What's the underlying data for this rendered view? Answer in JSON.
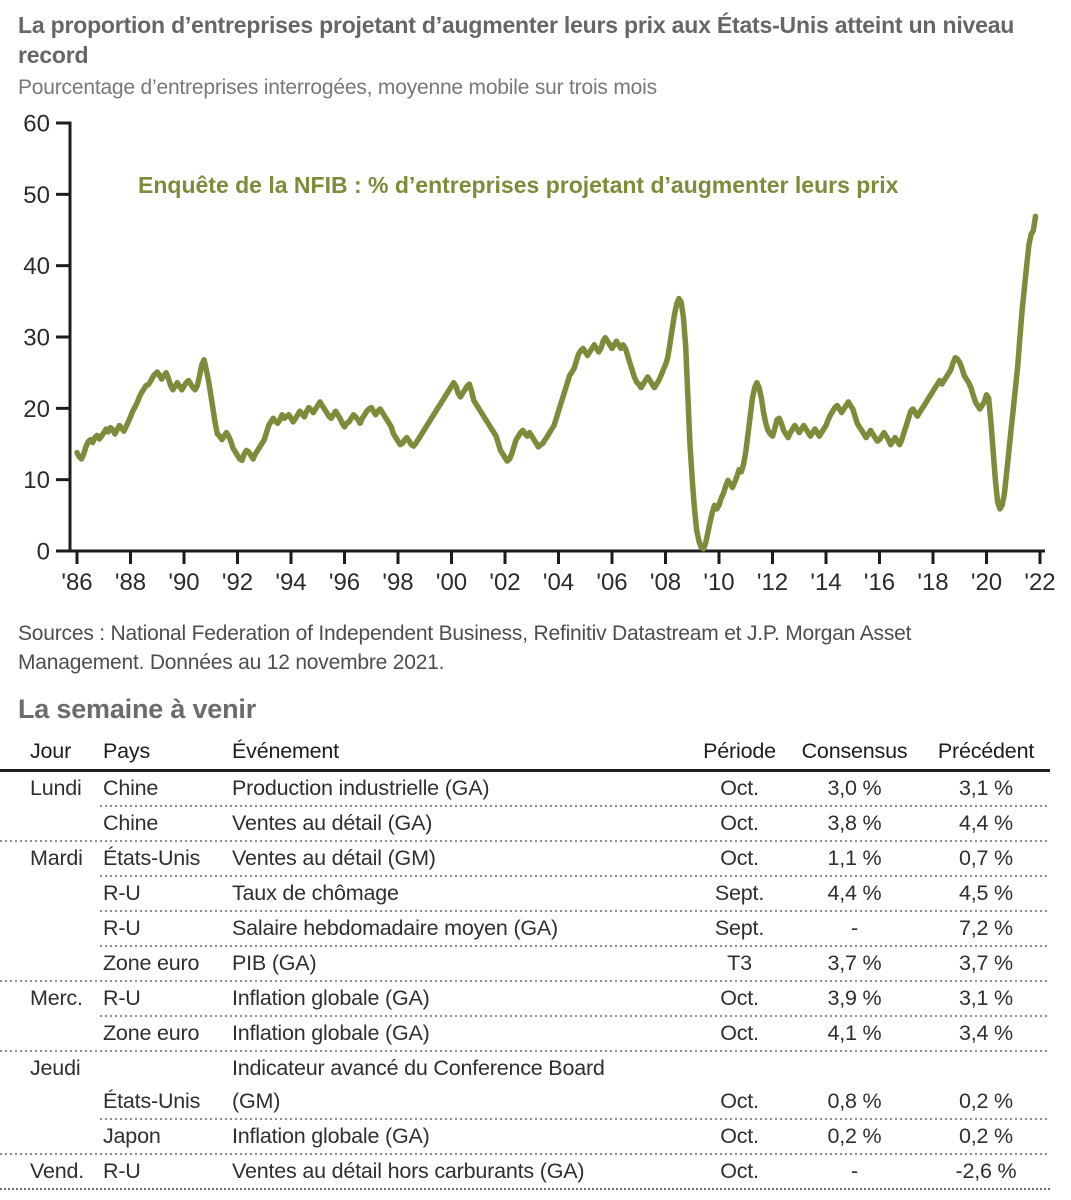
{
  "header": {
    "title": "La proportion d’entreprises projetant d’augmenter leurs prix aux États-Unis atteint un niveau record",
    "subtitle": "Pourcentage d’entreprises interrogées, moyenne mobile sur trois mois"
  },
  "chart_data": {
    "type": "line",
    "legend_label": "Enquête de la NFIB : % d’entreprises projetant d’augmenter leurs prix",
    "line_color": "#7d8b3a",
    "axis_color": "#1c1c1c",
    "ylim": [
      0,
      60
    ],
    "yticks": [
      0,
      10,
      20,
      30,
      40,
      50,
      60
    ],
    "xtick_labels": [
      "'86",
      "'88",
      "'90",
      "'92",
      "'94",
      "'96",
      "'98",
      "'00",
      "'02",
      "'04",
      "'06",
      "'08",
      "'10",
      "'12",
      "'14",
      "'16",
      "'18",
      "'20",
      "'22"
    ],
    "xtick_years": [
      1986,
      1988,
      1990,
      1992,
      1994,
      1996,
      1998,
      2000,
      2002,
      2004,
      2006,
      2008,
      2010,
      2012,
      2014,
      2016,
      2018,
      2020,
      2022
    ],
    "x_start_year": 1986,
    "points_per_year": 12,
    "grid": false,
    "values": [
      13.8,
      13.2,
      12.9,
      13.6,
      14.6,
      15.3,
      15.6,
      15.2,
      15.9,
      16.2,
      15.7,
      16.1,
      16.6,
      17.1,
      16.7,
      17.3,
      17.0,
      16.4,
      17.0,
      17.6,
      17.2,
      16.8,
      17.4,
      18.1,
      18.8,
      19.6,
      20.2,
      20.8,
      21.6,
      22.2,
      22.7,
      23.2,
      23.3,
      23.8,
      24.4,
      24.8,
      25.1,
      24.6,
      24.1,
      24.6,
      25.0,
      24.2,
      23.2,
      22.6,
      23.1,
      23.6,
      23.1,
      22.6,
      23.1,
      23.6,
      23.9,
      23.4,
      22.9,
      22.6,
      23.2,
      24.6,
      26.1,
      26.8,
      25.4,
      23.9,
      21.9,
      19.9,
      17.9,
      16.4,
      16.1,
      15.6,
      16.1,
      16.6,
      16.1,
      15.4,
      14.4,
      13.9,
      13.4,
      12.9,
      12.7,
      13.6,
      14.1,
      13.9,
      13.4,
      12.9,
      13.6,
      14.1,
      14.6,
      15.1,
      15.6,
      16.6,
      17.6,
      18.1,
      18.6,
      18.2,
      17.9,
      18.4,
      19.1,
      18.6,
      18.9,
      19.1,
      18.6,
      18.1,
      18.6,
      19.1,
      19.6,
      19.2,
      18.8,
      19.6,
      20.1,
      19.8,
      19.4,
      19.9,
      20.4,
      20.9,
      20.4,
      19.9,
      19.4,
      18.9,
      18.6,
      19.1,
      19.6,
      19.1,
      18.6,
      17.9,
      17.4,
      17.9,
      18.1,
      18.6,
      19.1,
      18.8,
      18.4,
      17.9,
      18.6,
      19.1,
      19.6,
      19.9,
      20.1,
      19.6,
      19.1,
      19.6,
      19.9,
      19.4,
      18.9,
      18.4,
      17.9,
      17.4,
      16.4,
      15.9,
      15.4,
      14.9,
      15.1,
      15.6,
      15.9,
      15.4,
      14.9,
      14.7,
      15.1,
      15.6,
      16.1,
      16.6,
      17.1,
      17.6,
      18.1,
      18.6,
      19.1,
      19.6,
      20.1,
      20.6,
      21.1,
      21.6,
      22.1,
      22.6,
      23.1,
      23.6,
      23.1,
      22.1,
      21.6,
      22.1,
      22.6,
      23.1,
      23.4,
      22.4,
      21.1,
      20.6,
      20.1,
      19.6,
      19.1,
      18.6,
      18.1,
      17.6,
      17.1,
      16.6,
      16.1,
      15.1,
      14.1,
      13.6,
      13.1,
      12.6,
      12.9,
      13.6,
      14.6,
      15.6,
      16.1,
      16.6,
      16.9,
      16.4,
      16.1,
      16.6,
      16.1,
      15.6,
      15.1,
      14.6,
      14.9,
      15.1,
      15.6,
      16.1,
      16.6,
      17.1,
      17.6,
      18.6,
      19.6,
      20.6,
      21.6,
      22.6,
      23.6,
      24.6,
      25.1,
      25.6,
      26.6,
      27.6,
      28.1,
      28.4,
      27.9,
      27.4,
      27.9,
      28.4,
      28.9,
      28.4,
      27.9,
      28.4,
      29.4,
      29.9,
      29.4,
      28.9,
      28.4,
      28.9,
      29.4,
      28.9,
      28.4,
      28.9,
      28.4,
      27.4,
      26.4,
      25.4,
      24.4,
      23.7,
      23.4,
      22.9,
      23.4,
      23.9,
      24.4,
      23.9,
      23.4,
      22.9,
      23.4,
      23.9,
      24.6,
      25.4,
      26.1,
      27.1,
      29.1,
      31.1,
      33.1,
      34.6,
      35.4,
      34.9,
      32.9,
      28.9,
      21.9,
      14.9,
      9.9,
      5.9,
      2.9,
      1.4,
      0.5,
      0.3,
      1.1,
      2.6,
      4.1,
      5.4,
      6.4,
      5.9,
      6.4,
      7.4,
      8.1,
      9.1,
      9.9,
      9.4,
      8.9,
      9.6,
      10.4,
      11.4,
      11.1,
      12.1,
      13.9,
      16.4,
      18.9,
      21.4,
      22.9,
      23.6,
      22.9,
      21.4,
      19.4,
      17.9,
      16.9,
      16.4,
      16.1,
      17.1,
      18.4,
      18.6,
      17.9,
      16.9,
      16.4,
      15.9,
      16.6,
      17.1,
      17.6,
      17.1,
      16.6,
      17.1,
      17.6,
      17.1,
      16.6,
      16.1,
      16.6,
      17.1,
      16.6,
      16.1,
      16.6,
      17.1,
      17.6,
      18.4,
      19.1,
      19.6,
      20.1,
      20.4,
      19.9,
      19.4,
      19.9,
      20.4,
      20.9,
      20.4,
      19.9,
      18.9,
      17.9,
      17.4,
      16.9,
      16.4,
      15.9,
      16.4,
      16.9,
      16.4,
      15.9,
      15.4,
      15.6,
      16.1,
      16.6,
      16.1,
      15.6,
      14.9,
      15.4,
      15.9,
      15.4,
      14.9,
      15.6,
      16.6,
      17.6,
      18.6,
      19.6,
      19.9,
      19.4,
      18.9,
      19.4,
      19.9,
      20.4,
      20.9,
      21.4,
      21.9,
      22.4,
      22.9,
      23.4,
      23.9,
      23.4,
      23.9,
      24.4,
      24.9,
      25.4,
      26.4,
      27.1,
      26.9,
      26.4,
      25.6,
      24.6,
      24.1,
      23.6,
      22.9,
      21.9,
      20.9,
      20.4,
      19.9,
      20.4,
      20.9,
      21.9,
      21.4,
      17.9,
      13.9,
      9.9,
      6.9,
      5.9,
      6.4,
      7.9,
      10.9,
      13.9,
      16.9,
      19.9,
      22.9,
      25.9,
      29.9,
      33.9,
      36.9,
      39.9,
      42.9,
      44.4,
      44.9,
      46.9
    ]
  },
  "source": {
    "text": "Sources : National Federation of Independent Business, Refinitiv Datastream et J.P. Morgan Asset Management. Données au 12 novembre 2021."
  },
  "week_ahead": {
    "heading": "La semaine à venir",
    "columns": [
      "Jour",
      "Pays",
      "Événement",
      "Période",
      "Consensus",
      "Précédent"
    ],
    "rows": [
      {
        "jour": "Lundi",
        "pays": "Chine",
        "evenement": "Production industrielle (GA)",
        "periode": "Oct.",
        "consensus": "3,0 %",
        "precedent": "3,1 %",
        "separator": "partial"
      },
      {
        "jour": "",
        "pays": "Chine",
        "evenement": "Ventes au détail (GA)",
        "periode": "Oct.",
        "consensus": "3,8 %",
        "precedent": "4,4 %",
        "separator": "full"
      },
      {
        "jour": "Mardi",
        "pays": "États-Unis",
        "evenement": "Ventes au détail (GM)",
        "periode": "Oct.",
        "consensus": "1,1 %",
        "precedent": "0,7 %",
        "separator": "partial"
      },
      {
        "jour": "",
        "pays": "R-U",
        "evenement": "Taux de chômage",
        "periode": "Sept.",
        "consensus": "4,4 %",
        "precedent": "4,5 %",
        "separator": "partial"
      },
      {
        "jour": "",
        "pays": "R-U",
        "evenement": "Salaire hebdomadaire moyen (GA)",
        "periode": "Sept.",
        "consensus": "-",
        "precedent": "7,2 %",
        "separator": "partial"
      },
      {
        "jour": "",
        "pays": "Zone euro",
        "evenement": "PIB (GA)",
        "periode": "T3",
        "consensus": "3,7 %",
        "precedent": "3,7 %",
        "separator": "full"
      },
      {
        "jour": "Merc.",
        "pays": "R-U",
        "evenement": "Inflation globale (GA)",
        "periode": "Oct.",
        "consensus": "3,9 %",
        "precedent": "3,1 %",
        "separator": "partial"
      },
      {
        "jour": "",
        "pays": "Zone euro",
        "evenement": "Inflation globale (GA)",
        "periode": "Oct.",
        "consensus": "4,1 %",
        "precedent": "3,4 %",
        "separator": "full"
      },
      {
        "jour": "Jeudi",
        "pays": "",
        "evenement": "Indicateur avancé du Conference Board",
        "periode": "",
        "consensus": "",
        "precedent": "",
        "separator": "none"
      },
      {
        "jour": "",
        "pays": "États-Unis",
        "evenement": "(GM)",
        "periode": "Oct.",
        "consensus": "0,8 %",
        "precedent": "0,2 %",
        "separator": "partial"
      },
      {
        "jour": "",
        "pays": "Japon",
        "evenement": "Inflation globale (GA)",
        "periode": "Oct.",
        "consensus": "0,2 %",
        "precedent": "0,2 %",
        "separator": "full"
      },
      {
        "jour": "Vend.",
        "pays": "R-U",
        "evenement": "Ventes au détail hors carburants (GA)",
        "periode": "Oct.",
        "consensus": "-",
        "precedent": "-2,6 %",
        "separator": "full-bottom"
      }
    ]
  }
}
